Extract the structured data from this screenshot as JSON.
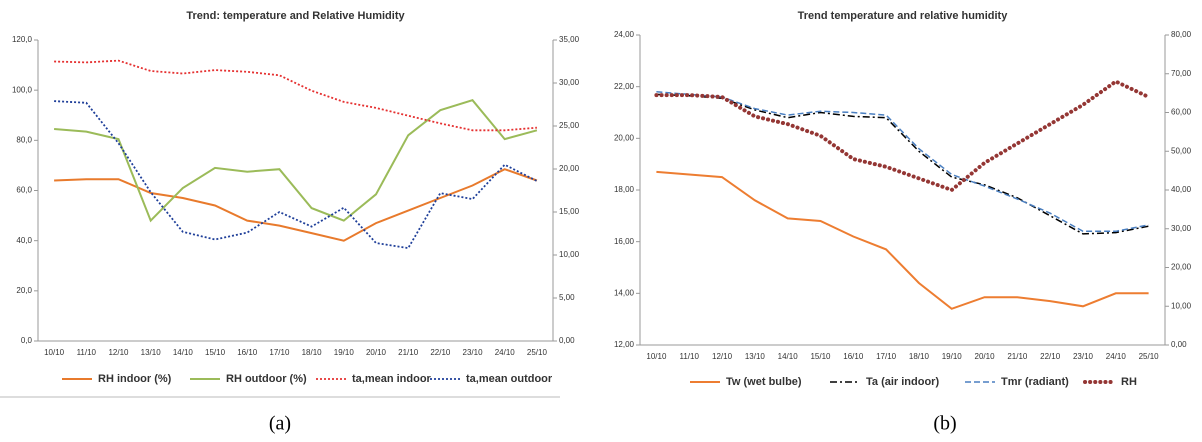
{
  "chart_data": [
    {
      "type": "line",
      "title": "Trend: temperature and Relative Humidity",
      "categories": [
        "10/10",
        "11/10",
        "12/10",
        "13/10",
        "14/10",
        "15/10",
        "16/10",
        "17/10",
        "18/10",
        "19/10",
        "20/10",
        "21/10",
        "22/10",
        "23/10",
        "24/10",
        "25/10"
      ],
      "ylim": [
        0,
        120
      ],
      "yticks": [
        {
          "value": 0,
          "label": "0,0"
        },
        {
          "value": 20,
          "label": "20,0"
        },
        {
          "value": 40,
          "label": "40,0"
        },
        {
          "value": 60,
          "label": "60,0"
        },
        {
          "value": 80,
          "label": "80,0"
        },
        {
          "value": 100,
          "label": "100,0"
        },
        {
          "value": 120,
          "label": "120,0"
        }
      ],
      "y2lim": [
        0,
        35
      ],
      "y2ticks": [
        {
          "value": 0,
          "label": "0,00"
        },
        {
          "value": 5,
          "label": "5,00"
        },
        {
          "value": 10,
          "label": "10,00"
        },
        {
          "value": 15,
          "label": "15,00"
        },
        {
          "value": 20,
          "label": "20,00"
        },
        {
          "value": 25,
          "label": "25,00"
        },
        {
          "value": 30,
          "label": "30,00"
        },
        {
          "value": 35,
          "label": "35,00"
        }
      ],
      "series": [
        {
          "name": "RH indoor (%)",
          "color": "#e87a2c",
          "style": "solid",
          "values": [
            64,
            64.5,
            64.5,
            59,
            57,
            54,
            48,
            46,
            43,
            40,
            47,
            52,
            57,
            62,
            68.5,
            64
          ]
        },
        {
          "name": "RH outdoor (%)",
          "color": "#9bbb59",
          "style": "solid",
          "values": [
            84.5,
            83.5,
            80.5,
            48,
            61,
            69,
            67.5,
            68.5,
            53,
            48,
            58.5,
            82,
            92,
            96,
            80.5,
            84
          ]
        },
        {
          "name": "ta,mean indoor",
          "color": "#e53030",
          "style": "dotted",
          "axis": "y2",
          "values": [
            32.5,
            32.4,
            32.6,
            31.4,
            31.1,
            31.5,
            31.3,
            30.9,
            29.1,
            27.8,
            27.1,
            26.2,
            25.3,
            24.5,
            24.5,
            24.8
          ]
        },
        {
          "name": "ta,mean outdoor",
          "color": "#1f3f99",
          "style": "dotted",
          "axis": "y2",
          "values": [
            27.9,
            27.7,
            23,
            17.3,
            12.7,
            11.8,
            12.6,
            15,
            13.3,
            15.5,
            11.4,
            10.8,
            17.2,
            16.5,
            20.5,
            18.6
          ]
        }
      ]
    },
    {
      "type": "line",
      "title": "Trend temperature and relative humidity",
      "categories": [
        "10/10",
        "11/10",
        "12/10",
        "13/10",
        "14/10",
        "15/10",
        "16/10",
        "17/10",
        "18/10",
        "19/10",
        "20/10",
        "21/10",
        "22/10",
        "23/10",
        "24/10",
        "25/10"
      ],
      "ylim": [
        12,
        24
      ],
      "yticks": [
        {
          "value": 12,
          "label": "12,00"
        },
        {
          "value": 14,
          "label": "14,00"
        },
        {
          "value": 16,
          "label": "16,00"
        },
        {
          "value": 18,
          "label": "18,00"
        },
        {
          "value": 20,
          "label": "20,00"
        },
        {
          "value": 22,
          "label": "22,00"
        },
        {
          "value": 24,
          "label": "24,00"
        }
      ],
      "y2lim": [
        0,
        80
      ],
      "y2ticks": [
        {
          "value": 0,
          "label": "0,00"
        },
        {
          "value": 10,
          "label": "10,00"
        },
        {
          "value": 20,
          "label": "20,00"
        },
        {
          "value": 30,
          "label": "30,00"
        },
        {
          "value": 40,
          "label": "40,00"
        },
        {
          "value": 50,
          "label": "50,00"
        },
        {
          "value": 60,
          "label": "60,00"
        },
        {
          "value": 70,
          "label": "70,00"
        },
        {
          "value": 80,
          "label": "80,00"
        }
      ],
      "series": [
        {
          "name": "Tw (wet bulbe)",
          "color": "#ed7d31",
          "style": "solid",
          "values": [
            18.7,
            18.6,
            18.5,
            17.6,
            16.9,
            16.8,
            16.2,
            15.7,
            14.4,
            13.4,
            13.85,
            13.85,
            13.7,
            13.5,
            14,
            14
          ]
        },
        {
          "name": "Ta (air indoor)",
          "color": "#000000",
          "style": "dashdot",
          "values": [
            21.7,
            21.65,
            21.55,
            21.1,
            20.8,
            21,
            20.85,
            20.8,
            19.5,
            18.5,
            18.2,
            17.7,
            17,
            16.3,
            16.35,
            16.6
          ]
        },
        {
          "name": "Tmr (radiant)",
          "color": "#4a7fc1",
          "style": "dashed",
          "values": [
            21.8,
            21.7,
            21.6,
            21.15,
            20.9,
            21.05,
            21,
            20.9,
            19.6,
            18.6,
            18.15,
            17.65,
            17.1,
            16.4,
            16.4,
            16.65
          ]
        },
        {
          "name": "RH",
          "color": "#943634",
          "style": "thickdotted",
          "axis": "y2",
          "values": [
            64.5,
            64.5,
            64,
            59,
            57,
            54,
            48,
            46,
            43,
            40,
            47,
            52,
            57,
            62,
            68,
            64
          ]
        }
      ]
    }
  ],
  "captions": [
    "(a)",
    "(b)"
  ]
}
